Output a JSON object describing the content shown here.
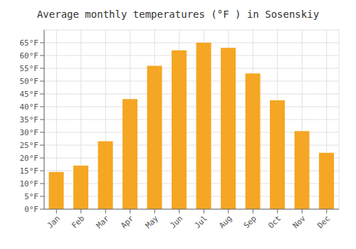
{
  "chart_data": {
    "type": "bar",
    "title": "Average monthly temperatures (°F ) in Sosenskiy",
    "categories": [
      "Jan",
      "Feb",
      "Mar",
      "Apr",
      "May",
      "Jun",
      "Jul",
      "Aug",
      "Sep",
      "Oct",
      "Nov",
      "Dec"
    ],
    "values": [
      14.5,
      17.0,
      26.5,
      43.0,
      56.0,
      62.0,
      65.0,
      63.0,
      53.0,
      42.5,
      30.5,
      22.0
    ],
    "color": "#F5A623",
    "ylim": [
      0,
      70
    ],
    "yticks": [
      {
        "value": 0,
        "label": "0°F"
      },
      {
        "value": 5,
        "label": "5°F"
      },
      {
        "value": 10,
        "label": "10°F"
      },
      {
        "value": 15,
        "label": "15°F"
      },
      {
        "value": 20,
        "label": "20°F"
      },
      {
        "value": 25,
        "label": "25°F"
      },
      {
        "value": 30,
        "label": "30°F"
      },
      {
        "value": 35,
        "label": "35°F"
      },
      {
        "value": 40,
        "label": "40°F"
      },
      {
        "value": 45,
        "label": "45°F"
      },
      {
        "value": 50,
        "label": "50°F"
      },
      {
        "value": 55,
        "label": "55°F"
      },
      {
        "value": 60,
        "label": "60°F"
      },
      {
        "value": 65,
        "label": "65°F"
      }
    ],
    "grid": true
  }
}
